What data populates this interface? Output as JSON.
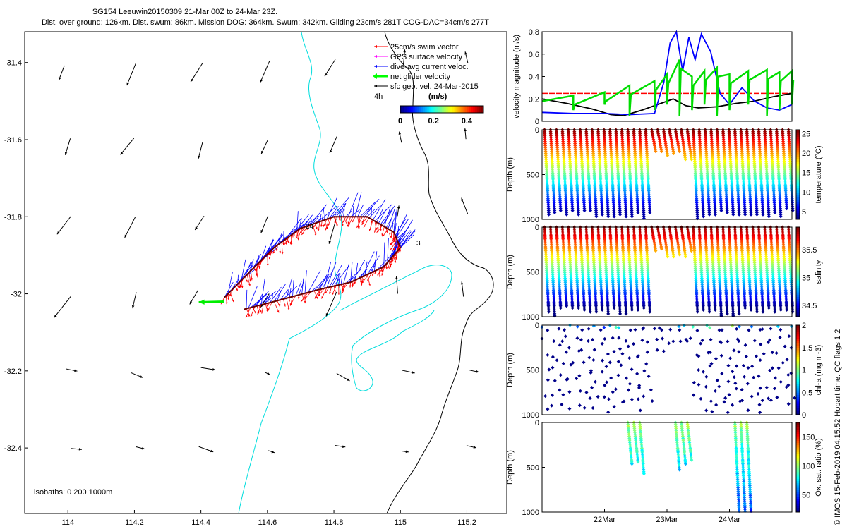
{
  "chart_data": [
    {
      "type": "map",
      "title": "SG154 Leeuwin20150309 21-Mar 00Z to 24-Mar 23Z.",
      "subtitle": "Dist. over ground: 126km. Dist. swum: 86km. Mission DOG: 364km. Swum: 342km. Gliding 23cm/s 281T COG-DAC=34cm/s 277T",
      "x_ticks": [
        114,
        114.2,
        114.4,
        114.6,
        114.8,
        115,
        115.2
      ],
      "x_tick_labels": [
        "114",
        "114.2",
        "114.4",
        "114.6",
        "114.8",
        "115",
        "115.2"
      ],
      "y_ticks": [
        -31.4,
        -31.6,
        -31.8,
        -32,
        -32.2,
        -32.4
      ],
      "y_tick_labels": [
        "-31.4",
        "-31.6",
        "-31.8",
        "-32",
        "-32.2",
        "-32.4"
      ],
      "xlim": [
        113.87,
        115.32
      ],
      "ylim": [
        -32.57,
        -31.32
      ],
      "legend": [
        {
          "label": "25cm/s swim vector",
          "color": "#ff0000"
        },
        {
          "label": "GPS surface velocity",
          "color": "#ff00ff"
        },
        {
          "label": "dive-avg current veloc.",
          "color": "#0000ff"
        },
        {
          "label": "net glider velocity",
          "color": "#00ff00"
        },
        {
          "label": "sfc geo. vel. 24-Mar-2015",
          "color": "#000000"
        }
      ],
      "legend_extra": "4h",
      "colorbar": {
        "label": "(m/s)",
        "ticks": [
          "0",
          "0.2",
          "0.4"
        ],
        "range": [
          0,
          0.5
        ]
      },
      "isobaths_label": "isobaths: 0   200   1000m",
      "track_labels": [
        {
          "text": "24",
          "lon": 114.72,
          "lat": -31.84
        },
        {
          "text": "3",
          "lon": 115.04,
          "lat": -31.88
        }
      ]
    },
    {
      "type": "line",
      "ylabel": "velocity magnitude (m/s)",
      "ylim": [
        0,
        0.8
      ],
      "y_ticks": [
        0,
        0.2,
        0.4,
        0.6,
        0.8
      ],
      "y_tick_labels": [
        "0",
        "0.2",
        "0.4",
        "0.6",
        "0.8"
      ],
      "xlim": [
        21.0,
        25.0
      ],
      "series": [
        {
          "name": "swim",
          "color": "#ff0000",
          "x": [
            21.0,
            25.0
          ],
          "values": [
            0.25,
            0.25
          ]
        },
        {
          "name": "geostrophic",
          "color": "#000000",
          "x": [
            21.0,
            21.4,
            21.8,
            22.1,
            22.3,
            22.6,
            22.9,
            23.1,
            23.3,
            23.5,
            23.8,
            24.1,
            24.4,
            24.7,
            25.0
          ],
          "values": [
            0.2,
            0.16,
            0.11,
            0.06,
            0.05,
            0.1,
            0.16,
            0.2,
            0.14,
            0.12,
            0.13,
            0.16,
            0.18,
            0.22,
            0.25
          ]
        },
        {
          "name": "dive-avg current",
          "color": "#0000ff",
          "x": [
            21.0,
            21.5,
            22.0,
            22.4,
            22.8,
            22.95,
            23.05,
            23.15,
            23.25,
            23.35,
            23.45,
            23.55,
            23.7,
            23.85,
            24.0,
            24.2,
            24.4,
            24.6,
            24.8,
            25.0
          ],
          "values": [
            0.08,
            0.07,
            0.07,
            0.06,
            0.07,
            0.35,
            0.7,
            0.8,
            0.45,
            0.75,
            0.55,
            0.78,
            0.62,
            0.25,
            0.15,
            0.3,
            0.18,
            0.12,
            0.1,
            0.15
          ]
        },
        {
          "name": "net glider velocity",
          "color": "#00dd00",
          "x": [
            21.0,
            21.5,
            22.0,
            22.4,
            22.8,
            23.0,
            23.2,
            23.4,
            23.6,
            23.8,
            24.0,
            24.3,
            24.6,
            24.8,
            25.0
          ],
          "values": [
            0.18,
            0.23,
            0.26,
            0.32,
            0.36,
            0.42,
            0.55,
            0.4,
            0.45,
            0.48,
            0.42,
            0.45,
            0.46,
            0.44,
            0.45
          ]
        }
      ]
    },
    {
      "type": "scatter",
      "ylabel": "Depth (m)",
      "colorbar_label": "temperature (°C)",
      "colorbar_ticks": [
        "5",
        "10",
        "15",
        "20",
        "25"
      ],
      "color_range": [
        3,
        26
      ],
      "ylim": [
        0,
        1000
      ],
      "y_tick_labels": [
        "0",
        "500",
        "1000"
      ]
    },
    {
      "type": "scatter",
      "ylabel": "Depth (m)",
      "colorbar_label": "salinity",
      "colorbar_ticks": [
        "34.5",
        "35",
        "35.5"
      ],
      "color_range": [
        34.3,
        35.9
      ],
      "ylim": [
        0,
        1000
      ],
      "y_tick_labels": [
        "0",
        "500",
        "1000"
      ]
    },
    {
      "type": "scatter",
      "ylabel": "Depth (m)",
      "colorbar_label": "chl-a (mg m-3)",
      "colorbar_ticks": [
        "0",
        "0.5",
        "1",
        "1.5",
        "2"
      ],
      "color_range": [
        0,
        2
      ],
      "ylim": [
        0,
        1000
      ],
      "y_tick_labels": [
        "0",
        "500",
        "1000"
      ]
    },
    {
      "type": "scatter",
      "ylabel": "Depth (m)",
      "colorbar_label": "Ox. sat. ratio (%)",
      "colorbar_ticks": [
        "50",
        "100",
        "150"
      ],
      "color_range": [
        20,
        175
      ],
      "ylim": [
        0,
        1000
      ],
      "y_tick_labels": [
        "0",
        "500",
        "1000"
      ],
      "x_ticks": [
        22,
        23,
        24
      ],
      "x_tick_labels": [
        "22Mar",
        "23Mar",
        "24Mar"
      ]
    }
  ],
  "side_note": "© IMOS 15-Feb-2019 04:15:52 Hobart time. QC flags 1  2"
}
